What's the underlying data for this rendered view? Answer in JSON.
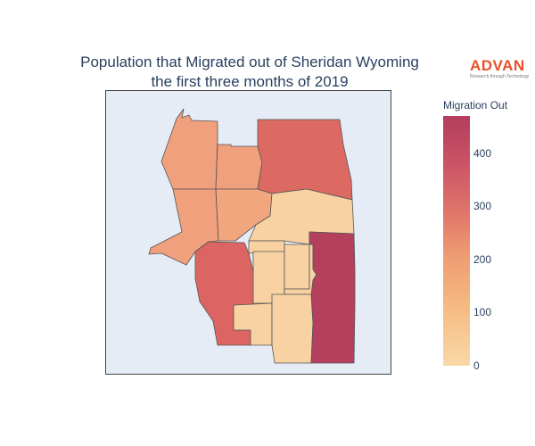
{
  "title": {
    "line1": "Population that Migrated out of Sheridan Wyoming",
    "line2": "the first three months of 2019"
  },
  "logo": {
    "word": "ADVAN",
    "tagline": "Research through Technology"
  },
  "legend": {
    "title": "Migration Out",
    "ticks": [
      "0",
      "100",
      "200",
      "300",
      "400"
    ],
    "range": [
      0,
      470
    ]
  },
  "colors": {
    "background": "#e5ecf6",
    "border": "#555555"
  },
  "regions": [
    {
      "name": "northwest",
      "value": 170,
      "color": "#f0a07c"
    },
    {
      "name": "north-central",
      "value": 175,
      "color": "#f0a07c"
    },
    {
      "name": "northeast",
      "value": 300,
      "color": "#dd6a62"
    },
    {
      "name": "west",
      "value": 175,
      "color": "#f0a07c"
    },
    {
      "name": "central-west",
      "value": 165,
      "color": "#f2a67e"
    },
    {
      "name": "east-central",
      "value": 25,
      "color": "#f8d2a2"
    },
    {
      "name": "central-small",
      "value": 25,
      "color": "#f8d2a2"
    },
    {
      "name": "southwest",
      "value": 300,
      "color": "#dc6563"
    },
    {
      "name": "south-central-a",
      "value": 20,
      "color": "#f8d2a2"
    },
    {
      "name": "south-central-b",
      "value": 20,
      "color": "#f8d2a2"
    },
    {
      "name": "south-central-c",
      "value": 20,
      "color": "#f8d2a2"
    },
    {
      "name": "south-west-small",
      "value": 20,
      "color": "#f8d2a2"
    },
    {
      "name": "south",
      "value": 20,
      "color": "#f8d2a2"
    },
    {
      "name": "east",
      "value": 460,
      "color": "#b5405d"
    }
  ]
}
